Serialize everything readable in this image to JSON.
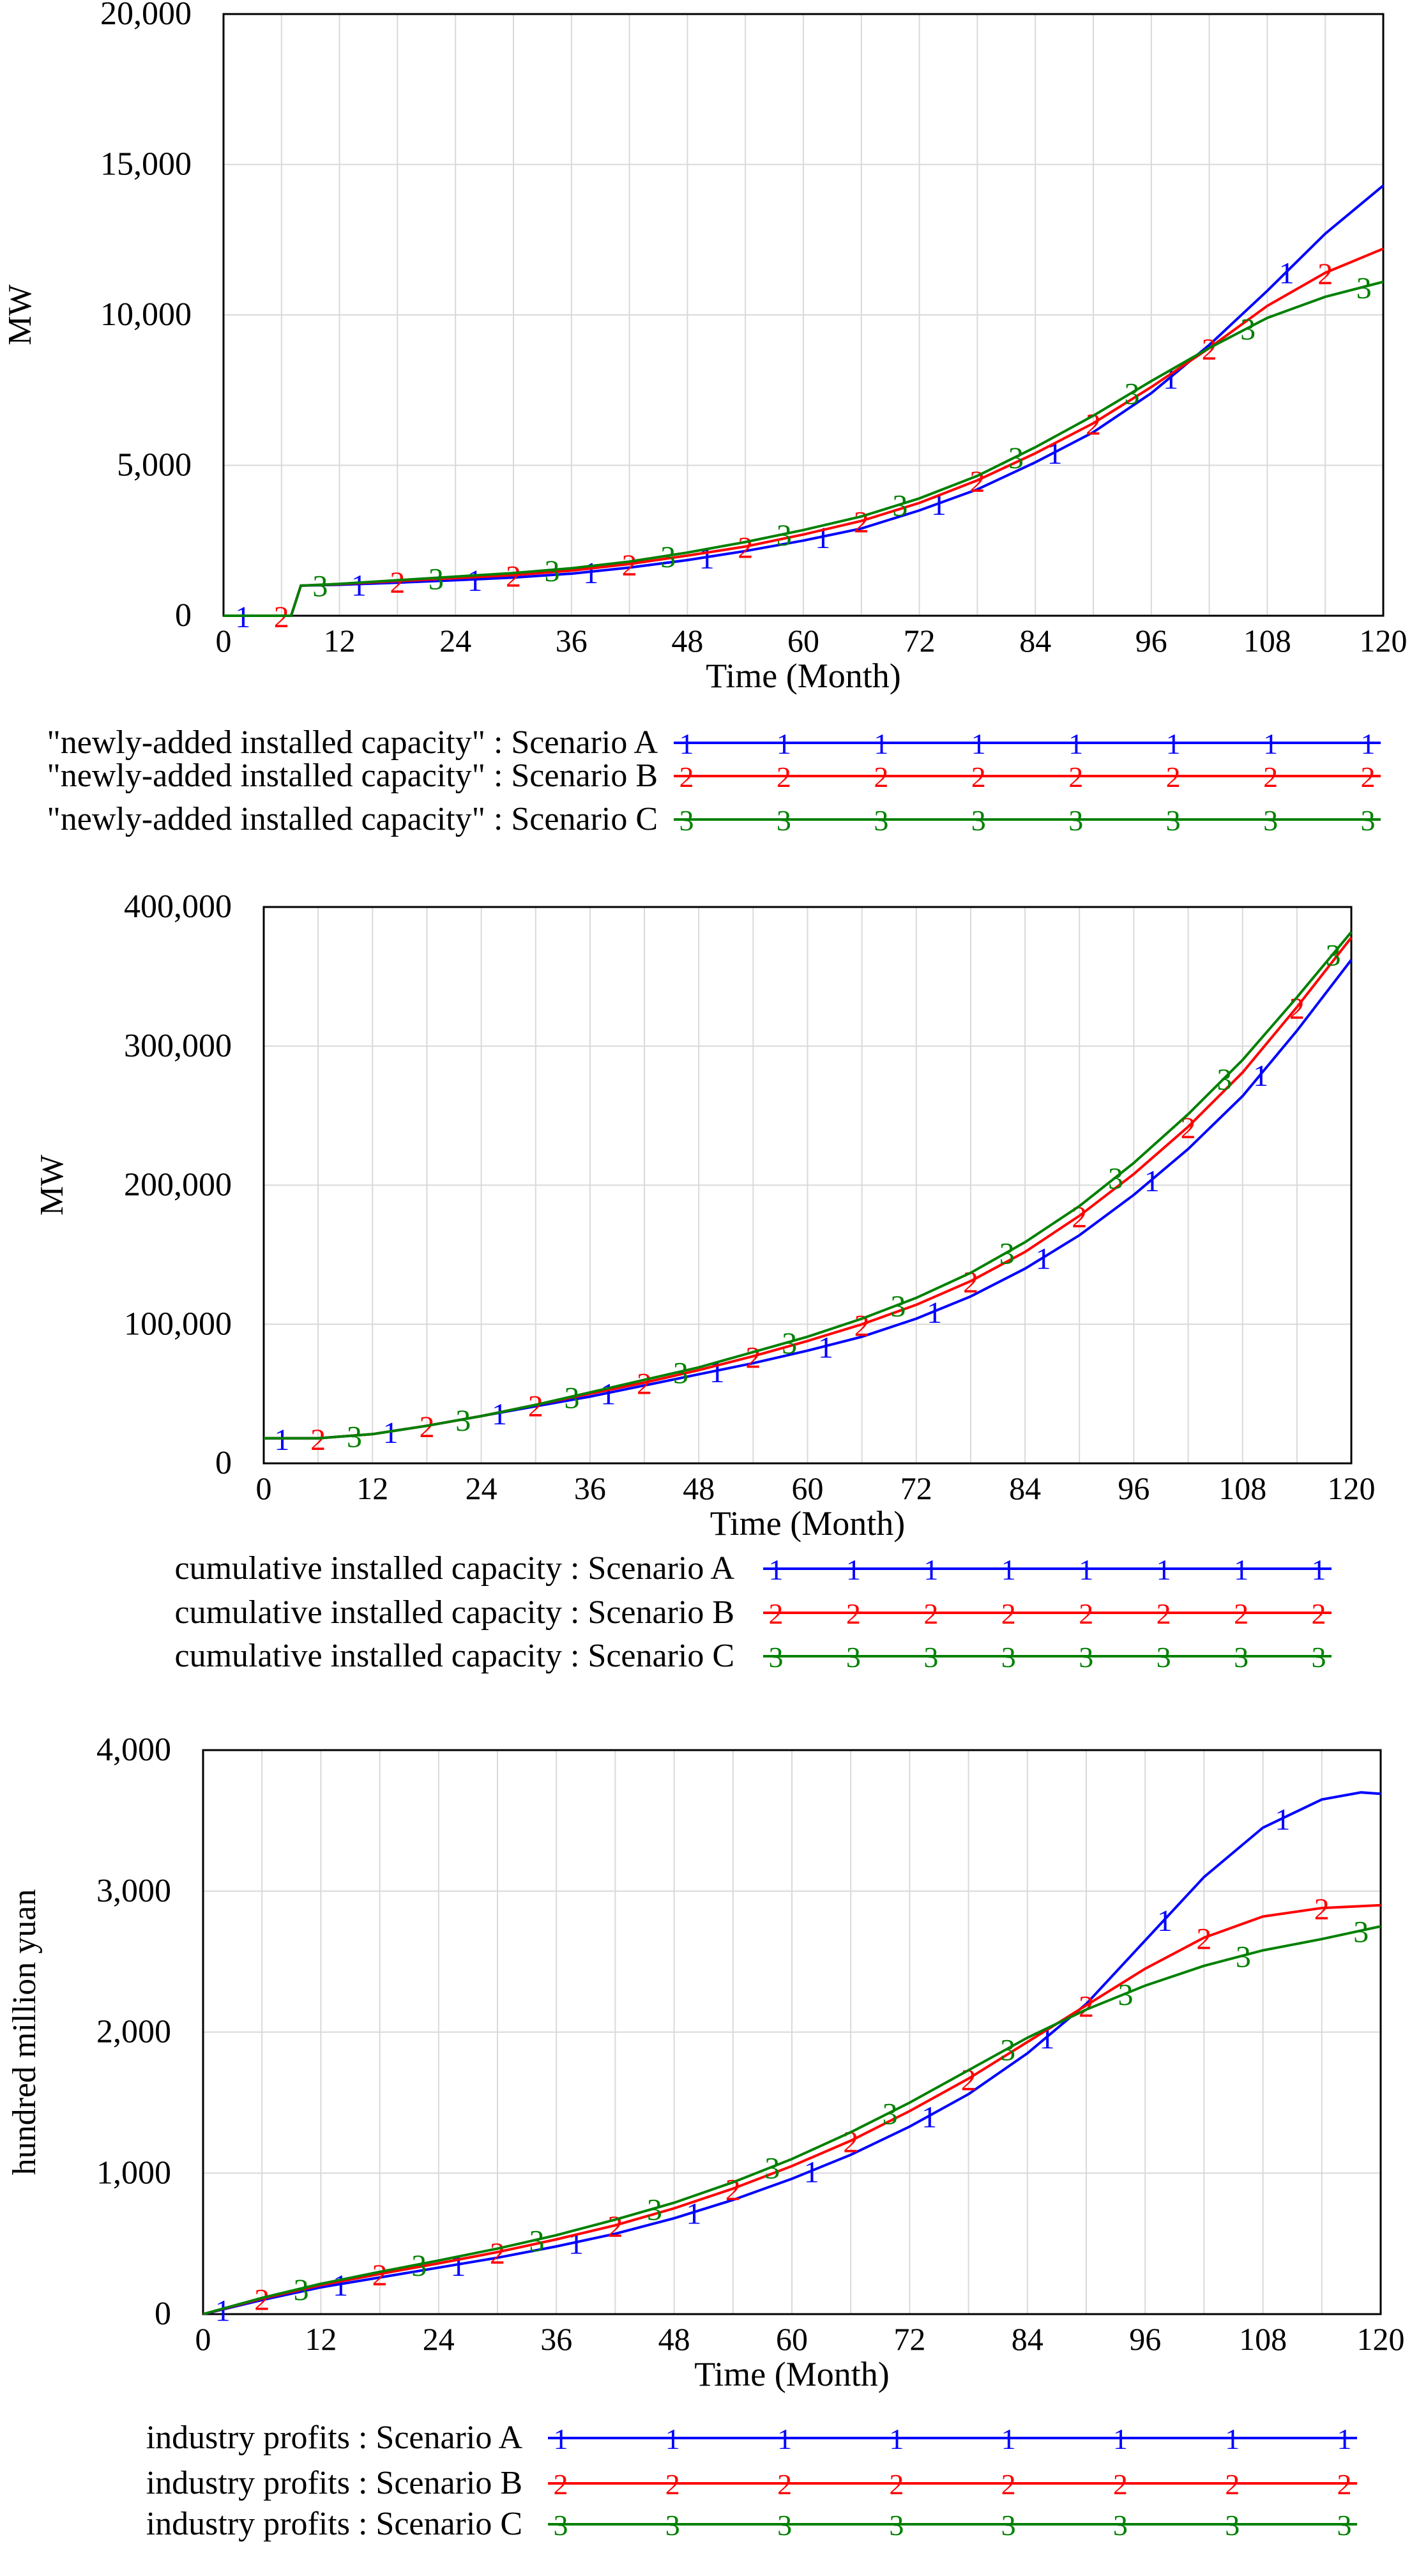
{
  "colors": {
    "scenario_a": "#0000ff",
    "scenario_b": "#ff0000",
    "scenario_c": "#008000",
    "grid": "#d9d9d9",
    "axis": "#000000"
  },
  "chart_data": [
    {
      "type": "line",
      "title": "",
      "xlabel": "Time (Month)",
      "ylabel": "MW",
      "xlim": [
        0,
        120
      ],
      "ylim": [
        0,
        20000
      ],
      "x_ticks": [
        "0",
        "12",
        "24",
        "36",
        "48",
        "60",
        "72",
        "84",
        "96",
        "108",
        "120"
      ],
      "y_ticks": [
        "0",
        "5,000",
        "10,000",
        "15,000",
        "20,000"
      ],
      "grid": true,
      "legend_position": "below",
      "series": [
        {
          "name": "\"newly-added installed capacity\" : Scenario A",
          "marker": "1",
          "color": "#0000ff",
          "x": [
            0,
            6,
            7,
            8,
            12,
            18,
            24,
            30,
            36,
            42,
            48,
            54,
            60,
            66,
            72,
            78,
            84,
            90,
            96,
            102,
            108,
            114,
            120
          ],
          "values": [
            0,
            0,
            0,
            1000,
            1030,
            1100,
            1180,
            1270,
            1400,
            1600,
            1850,
            2150,
            2500,
            2900,
            3500,
            4200,
            5100,
            6100,
            7400,
            9000,
            10800,
            12700,
            14300
          ]
        },
        {
          "name": "\"newly-added installed capacity\" : Scenario B",
          "marker": "2",
          "color": "#ff0000",
          "x": [
            0,
            6,
            7,
            8,
            12,
            18,
            24,
            30,
            36,
            42,
            48,
            54,
            60,
            66,
            72,
            78,
            84,
            90,
            96,
            102,
            108,
            114,
            120
          ],
          "values": [
            0,
            0,
            0,
            1000,
            1050,
            1150,
            1250,
            1350,
            1500,
            1720,
            2000,
            2300,
            2700,
            3150,
            3750,
            4500,
            5400,
            6400,
            7600,
            8900,
            10300,
            11400,
            12200
          ]
        },
        {
          "name": "\"newly-added installed capacity\" : Scenario C",
          "marker": "3",
          "color": "#008000",
          "x": [
            0,
            6,
            7,
            8,
            12,
            18,
            24,
            30,
            36,
            42,
            48,
            54,
            60,
            66,
            72,
            78,
            84,
            90,
            96,
            102,
            108,
            114,
            120
          ],
          "values": [
            0,
            0,
            0,
            1000,
            1060,
            1180,
            1300,
            1420,
            1580,
            1800,
            2100,
            2450,
            2850,
            3300,
            3900,
            4650,
            5600,
            6650,
            7800,
            8900,
            9900,
            10600,
            11100
          ]
        }
      ],
      "legend": [
        "\"newly-added installed capacity\" : Scenario A",
        "\"newly-added installed capacity\" : Scenario B",
        "\"newly-added installed capacity\" : Scenario C"
      ]
    },
    {
      "type": "line",
      "title": "",
      "xlabel": "Time (Month)",
      "ylabel": "MW",
      "xlim": [
        0,
        120
      ],
      "ylim": [
        0,
        400000
      ],
      "x_ticks": [
        "0",
        "12",
        "24",
        "36",
        "48",
        "60",
        "72",
        "84",
        "96",
        "108",
        "120"
      ],
      "y_ticks": [
        "0",
        "100,000",
        "200,000",
        "300,000",
        "400,000"
      ],
      "grid": true,
      "legend_position": "below",
      "series": [
        {
          "name": "cumulative installed capacity : Scenario A",
          "marker": "1",
          "color": "#0000ff",
          "x": [
            0,
            6,
            12,
            18,
            24,
            30,
            36,
            42,
            48,
            54,
            60,
            66,
            72,
            78,
            84,
            90,
            96,
            102,
            108,
            114,
            120
          ],
          "values": [
            18000,
            18000,
            21000,
            27000,
            34000,
            41000,
            48000,
            56000,
            64000,
            72000,
            81000,
            91000,
            104000,
            120000,
            140000,
            164000,
            193000,
            226000,
            264000,
            311000,
            362000
          ]
        },
        {
          "name": "cumulative installed capacity : Scenario B",
          "marker": "2",
          "color": "#ff0000",
          "x": [
            0,
            6,
            12,
            18,
            24,
            30,
            36,
            42,
            48,
            54,
            60,
            66,
            72,
            78,
            84,
            90,
            96,
            102,
            108,
            114,
            120
          ],
          "values": [
            18000,
            18000,
            21000,
            27000,
            34000,
            42000,
            50000,
            58000,
            67000,
            77000,
            88000,
            100000,
            114000,
            131000,
            152000,
            178000,
            208000,
            242000,
            281000,
            328000,
            378000
          ]
        },
        {
          "name": "cumulative installed capacity : Scenario C",
          "marker": "3",
          "color": "#008000",
          "x": [
            0,
            6,
            12,
            18,
            24,
            30,
            36,
            42,
            48,
            54,
            60,
            66,
            72,
            78,
            84,
            90,
            96,
            102,
            108,
            114,
            120
          ],
          "values": [
            18000,
            18000,
            21000,
            27000,
            34000,
            42000,
            51000,
            60000,
            69000,
            80000,
            91000,
            104000,
            119000,
            137000,
            159000,
            185000,
            216000,
            251000,
            290000,
            335000,
            382000
          ]
        }
      ],
      "legend": [
        "cumulative installed capacity : Scenario A",
        "cumulative installed capacity : Scenario B",
        "cumulative installed capacity : Scenario C"
      ]
    },
    {
      "type": "line",
      "title": "",
      "xlabel": "Time (Month)",
      "ylabel": "hundred million yuan",
      "xlim": [
        0,
        120
      ],
      "ylim": [
        0,
        4000
      ],
      "x_ticks": [
        "0",
        "12",
        "24",
        "36",
        "48",
        "60",
        "72",
        "84",
        "96",
        "108",
        "120"
      ],
      "y_ticks": [
        "0",
        "1,000",
        "2,000",
        "3,000",
        "4,000"
      ],
      "grid": true,
      "legend_position": "below",
      "series": [
        {
          "name": "industry profits : Scenario A",
          "marker": "1",
          "color": "#0000ff",
          "x": [
            0,
            6,
            12,
            18,
            24,
            30,
            36,
            42,
            48,
            54,
            60,
            66,
            72,
            78,
            84,
            90,
            96,
            102,
            108,
            114,
            118,
            120
          ],
          "values": [
            0,
            100,
            190,
            260,
            330,
            400,
            480,
            570,
            680,
            810,
            960,
            1130,
            1330,
            1560,
            1850,
            2200,
            2650,
            3100,
            3450,
            3650,
            3700,
            3690
          ]
        },
        {
          "name": "industry profits : Scenario B",
          "marker": "2",
          "color": "#ff0000",
          "x": [
            0,
            6,
            12,
            18,
            24,
            30,
            36,
            42,
            48,
            54,
            60,
            66,
            72,
            78,
            84,
            90,
            96,
            102,
            108,
            114,
            120
          ],
          "values": [
            0,
            110,
            205,
            285,
            360,
            440,
            530,
            630,
            750,
            890,
            1050,
            1230,
            1440,
            1670,
            1930,
            2190,
            2450,
            2670,
            2820,
            2880,
            2900
          ]
        },
        {
          "name": "industry profits : Scenario C",
          "marker": "3",
          "color": "#008000",
          "x": [
            0,
            6,
            12,
            18,
            24,
            30,
            36,
            42,
            48,
            54,
            60,
            66,
            72,
            78,
            84,
            90,
            96,
            102,
            108,
            114,
            120
          ],
          "values": [
            0,
            115,
            215,
            300,
            380,
            465,
            560,
            670,
            790,
            935,
            1100,
            1290,
            1500,
            1730,
            1960,
            2160,
            2330,
            2470,
            2580,
            2660,
            2750
          ]
        }
      ],
      "legend": [
        "industry profits : Scenario A",
        "industry profits : Scenario B",
        "industry profits : Scenario C"
      ]
    }
  ]
}
